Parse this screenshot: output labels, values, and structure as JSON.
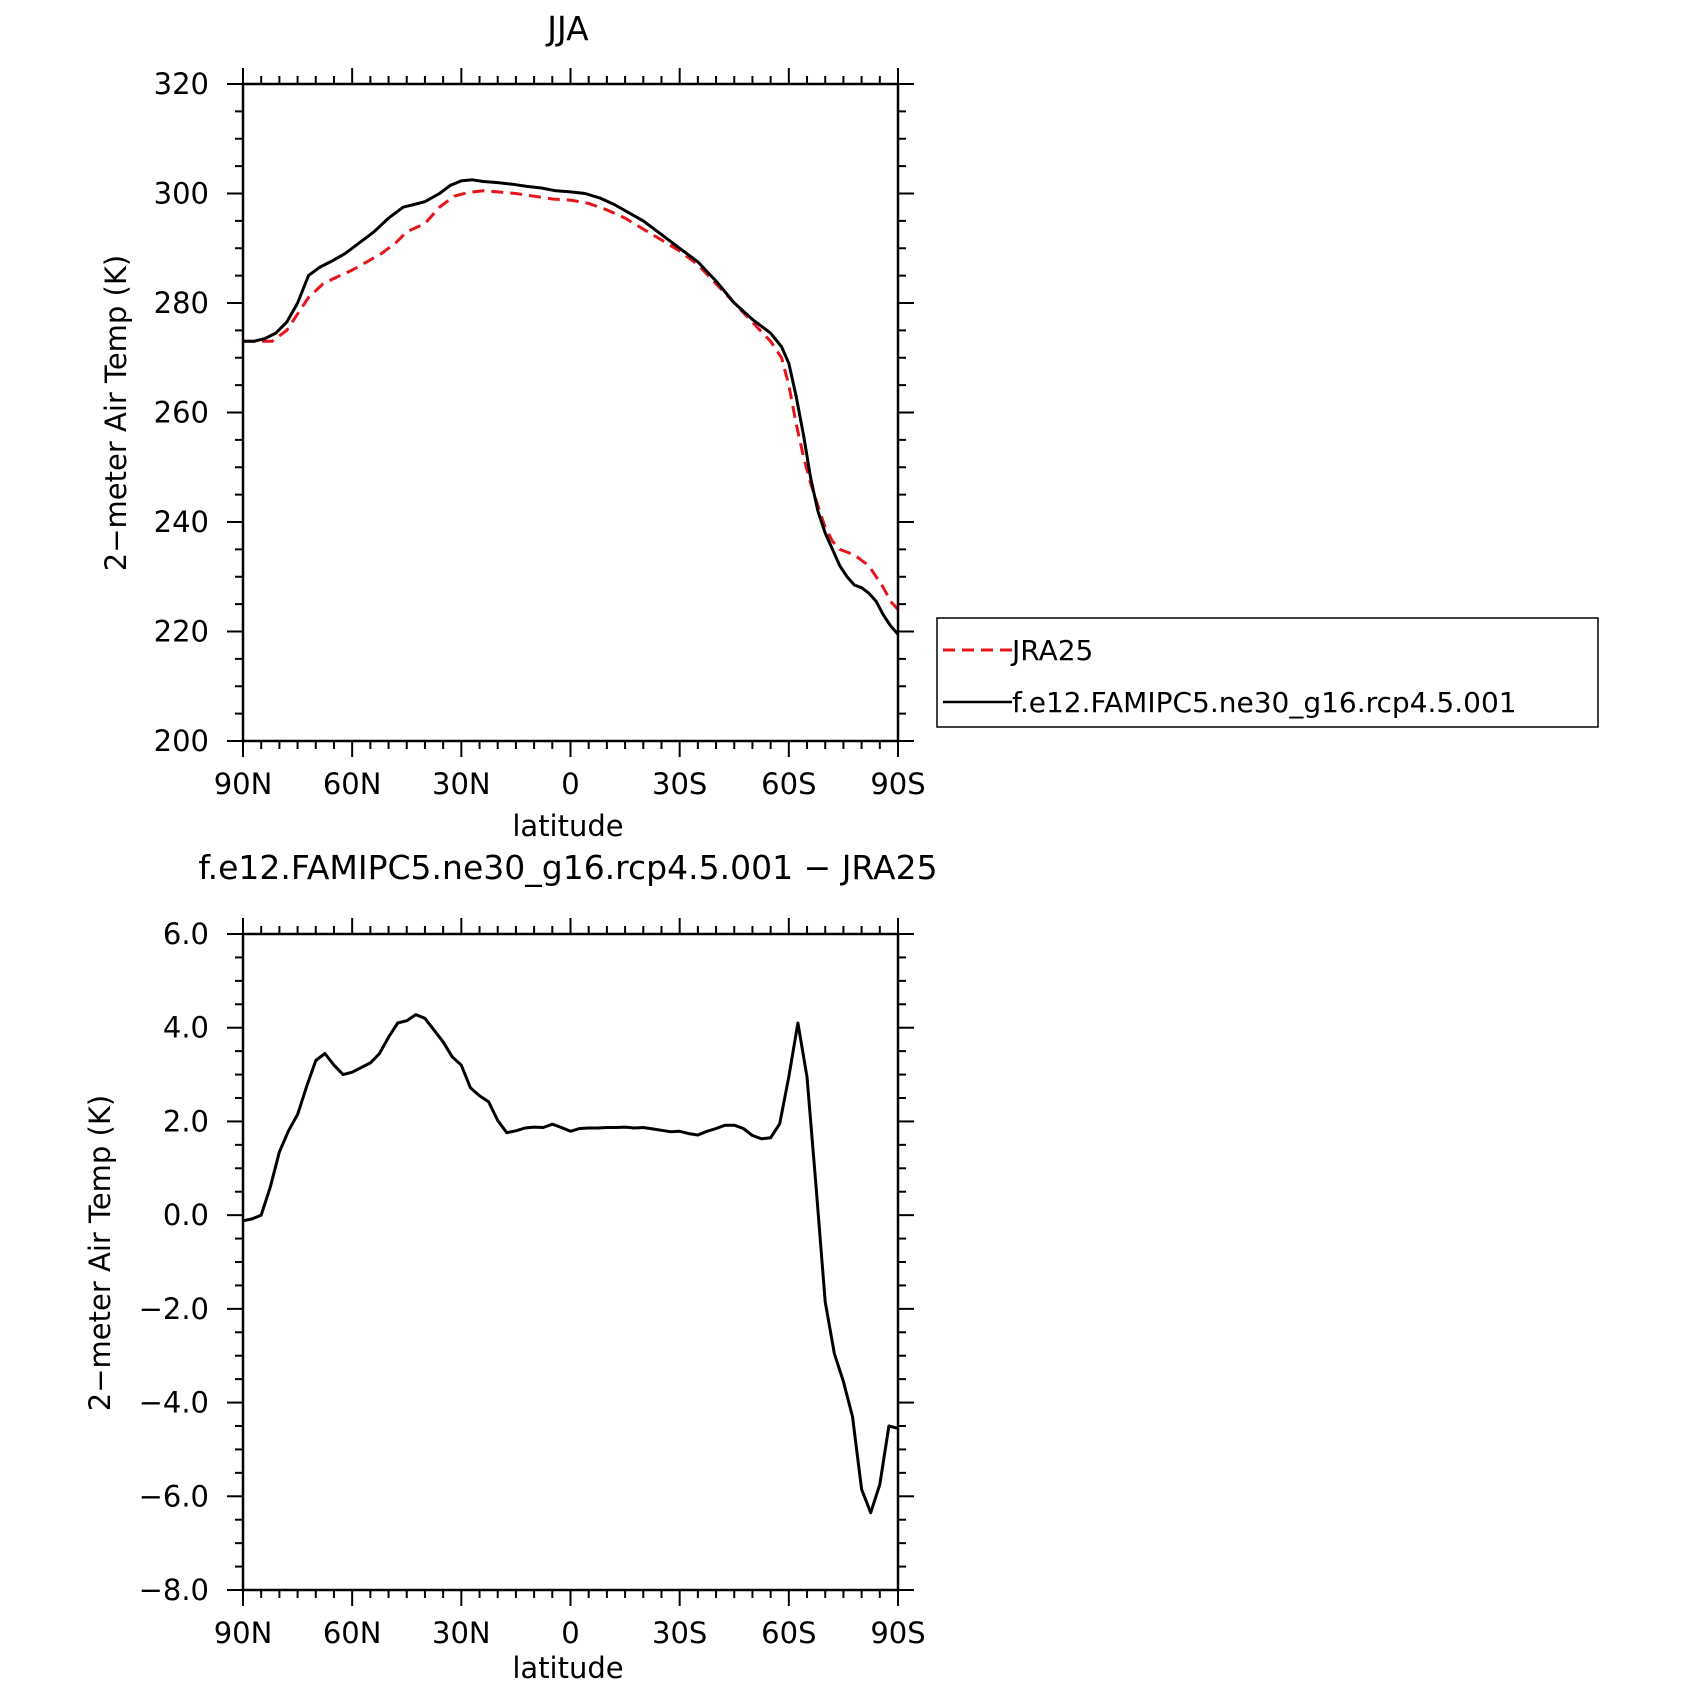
{
  "chart_data": [
    {
      "type": "line",
      "title": "JJA",
      "xlabel": "latitude",
      "ylabel": "2−meter Air Temp (K)",
      "xlim": [
        90,
        -90
      ],
      "ylim": [
        200,
        320
      ],
      "xticks": [
        {
          "value": 90,
          "label": "90N"
        },
        {
          "value": 60,
          "label": "60N"
        },
        {
          "value": 30,
          "label": "30N"
        },
        {
          "value": 0,
          "label": "0"
        },
        {
          "value": -30,
          "label": "30S"
        },
        {
          "value": -60,
          "label": "60S"
        },
        {
          "value": -90,
          "label": "90S"
        }
      ],
      "yticks": [
        {
          "value": 200,
          "label": "200"
        },
        {
          "value": 220,
          "label": "220"
        },
        {
          "value": 240,
          "label": "240"
        },
        {
          "value": 260,
          "label": "260"
        },
        {
          "value": 280,
          "label": "280"
        },
        {
          "value": 300,
          "label": "300"
        },
        {
          "value": 320,
          "label": "320"
        }
      ],
      "legend": "right",
      "series": [
        {
          "name": "JRA25",
          "color": "#e8141c",
          "dash": "dashed",
          "x": [
            90,
            85,
            82,
            78,
            75,
            72,
            68,
            65,
            60,
            56,
            52,
            48,
            45,
            40,
            36,
            32,
            28,
            24,
            20,
            15,
            10,
            5,
            0,
            -5,
            -10,
            -15,
            -20,
            -25,
            -30,
            -35,
            -40,
            -45,
            -50,
            -55,
            -58,
            -60,
            -62,
            -64,
            -66,
            -68,
            -70,
            -72,
            -74,
            -76,
            -78,
            -80,
            -82,
            -84,
            -86,
            -88,
            -90
          ],
          "y": [
            273,
            273,
            273,
            275,
            278,
            281,
            283.5,
            284.5,
            286,
            287.5,
            289,
            291,
            293,
            294.5,
            297.5,
            299.5,
            300.2,
            300.5,
            300.3,
            300,
            299.5,
            299,
            298.8,
            298.2,
            297,
            295.5,
            293.5,
            291.5,
            289.5,
            287,
            283.5,
            280,
            276.5,
            273,
            270,
            265,
            258,
            252,
            247,
            243,
            239,
            236.5,
            235,
            234.5,
            234,
            233,
            232,
            230,
            228,
            225.5,
            224
          ]
        },
        {
          "name": "f.e12.FAMIPC5.ne30_g16.rcp4.5.001",
          "color": "#000000",
          "dash": "solid",
          "x": [
            90,
            87,
            84,
            81,
            78,
            75,
            72,
            69,
            66,
            62,
            58,
            54,
            50,
            46,
            43,
            40,
            36,
            33,
            30,
            27,
            24,
            20,
            16,
            12,
            8,
            4,
            0,
            -4,
            -8,
            -12,
            -16,
            -20,
            -25,
            -30,
            -35,
            -40,
            -45,
            -50,
            -55,
            -58,
            -60,
            -62,
            -64,
            -66,
            -68,
            -70,
            -72,
            -74,
            -76,
            -78,
            -80,
            -82,
            -84,
            -86,
            -88,
            -90
          ],
          "y": [
            273,
            273,
            273.5,
            274.5,
            276.5,
            280,
            285,
            286.5,
            287.5,
            289,
            291,
            293,
            295.5,
            297.5,
            298,
            298.5,
            300,
            301.5,
            302.3,
            302.5,
            302.2,
            302,
            301.7,
            301.3,
            301,
            300.5,
            300.3,
            300,
            299.2,
            298,
            296.5,
            295,
            292.5,
            290,
            287.5,
            284,
            280,
            277,
            274.5,
            272,
            269,
            263,
            256,
            248,
            242,
            238,
            235,
            232,
            230,
            228.5,
            228,
            227,
            225.5,
            223,
            221,
            219.5
          ]
        }
      ]
    },
    {
      "type": "line",
      "title": "f.e12.FAMIPC5.ne30_g16.rcp4.5.001 − JRA25",
      "xlabel": "latitude",
      "ylabel": "2−meter Air Temp (K)",
      "xlim": [
        90,
        -90
      ],
      "ylim": [
        -8,
        6
      ],
      "xticks": [
        {
          "value": 90,
          "label": "90N"
        },
        {
          "value": 60,
          "label": "60N"
        },
        {
          "value": 30,
          "label": "30N"
        },
        {
          "value": 0,
          "label": "0"
        },
        {
          "value": -30,
          "label": "30S"
        },
        {
          "value": -60,
          "label": "60S"
        },
        {
          "value": -90,
          "label": "90S"
        }
      ],
      "yticks": [
        {
          "value": 6,
          "label": "6.0"
        },
        {
          "value": 4,
          "label": "4.0"
        },
        {
          "value": 2,
          "label": "2.0"
        },
        {
          "value": 0,
          "label": "0.0"
        },
        {
          "value": -2,
          "label": "−2.0"
        },
        {
          "value": -4,
          "label": "−4.0"
        },
        {
          "value": -6,
          "label": "−6.0"
        },
        {
          "value": -8,
          "label": "−8.0"
        }
      ],
      "series": [
        {
          "color": "#000000",
          "dash": "solid",
          "x": [
            90,
            87.5,
            85,
            82.5,
            80,
            77.5,
            75,
            72.5,
            70,
            67.5,
            65,
            62.5,
            60,
            57.5,
            55,
            52.5,
            50,
            47.5,
            45,
            42.5,
            40,
            37.5,
            35,
            32.5,
            30,
            27.5,
            25,
            22.5,
            20,
            17.5,
            15,
            12.5,
            10,
            7.5,
            5,
            2.5,
            0,
            -2.5,
            -5,
            -7.5,
            -10,
            -12.5,
            -15,
            -17.5,
            -20,
            -22.5,
            -25,
            -27.5,
            -30,
            -32.5,
            -35,
            -37.5,
            -40,
            -42.5,
            -45,
            -47.5,
            -50,
            -52.5,
            -55,
            -57.5,
            -60,
            -62.5,
            -65,
            -67.5,
            -70,
            -72.5,
            -75,
            -77.5,
            -80,
            -82.5,
            -85,
            -87.5,
            -90
          ],
          "y": [
            -0.12,
            -0.08,
            0,
            0.6,
            1.35,
            1.8,
            2.15,
            2.75,
            3.3,
            3.45,
            3.2,
            3.0,
            3.05,
            3.15,
            3.25,
            3.45,
            3.8,
            4.1,
            4.15,
            4.28,
            4.2,
            3.95,
            3.7,
            3.38,
            3.2,
            2.72,
            2.55,
            2.42,
            2.02,
            1.76,
            1.8,
            1.86,
            1.88,
            1.87,
            1.94,
            1.87,
            1.79,
            1.85,
            1.86,
            1.86,
            1.87,
            1.87,
            1.88,
            1.86,
            1.87,
            1.84,
            1.81,
            1.78,
            1.79,
            1.74,
            1.71,
            1.79,
            1.85,
            1.92,
            1.92,
            1.85,
            1.7,
            1.63,
            1.65,
            1.95,
            2.95,
            4.1,
            2.95,
            0.6,
            -1.85,
            -2.95,
            -3.55,
            -4.3,
            -5.85,
            -6.35,
            -5.75,
            -4.5,
            -4.55
          ]
        }
      ]
    }
  ]
}
